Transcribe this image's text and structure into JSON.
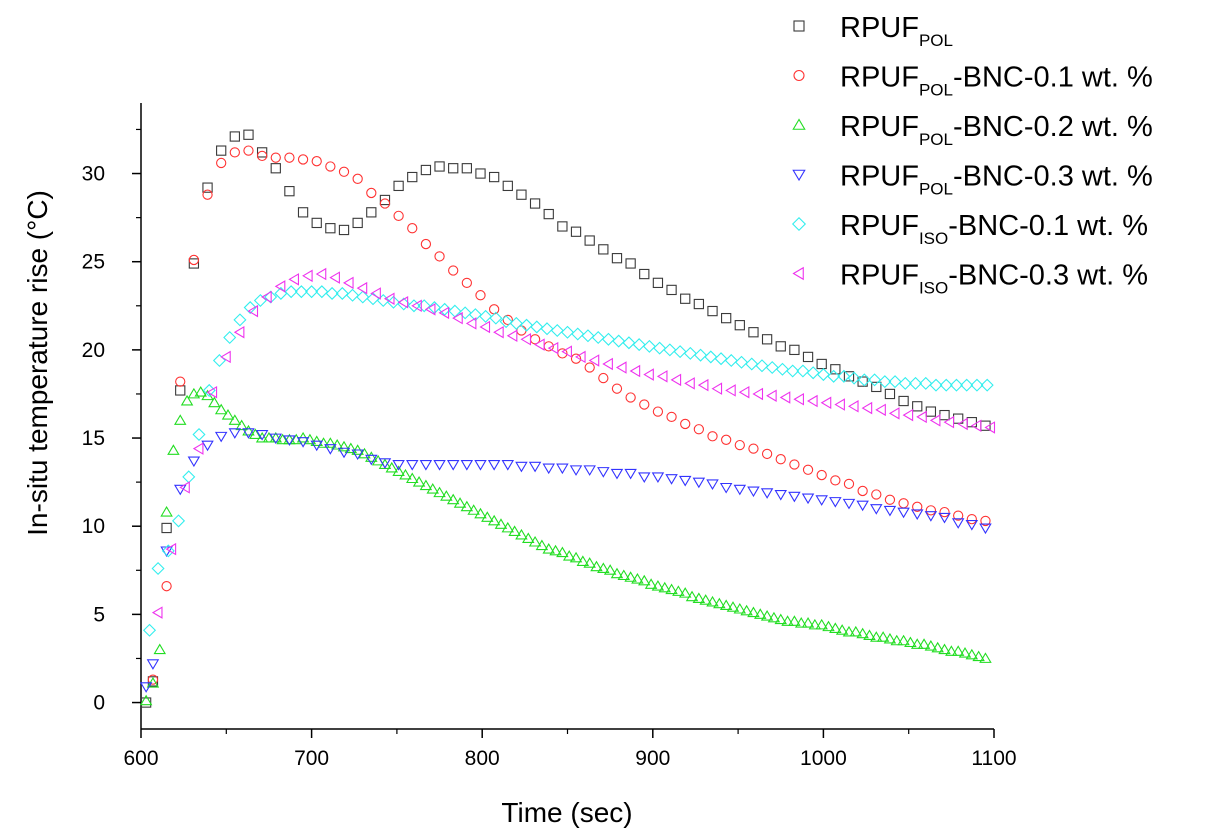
{
  "chart_data": {
    "type": "scatter",
    "xlabel": "Time (sec)",
    "ylabel": "In-situ temperature rise (°C)",
    "xlim": [
      600,
      1100
    ],
    "ylim": [
      -1.5,
      34
    ],
    "xticks": [
      600,
      700,
      800,
      900,
      1000,
      1100
    ],
    "yticks": [
      0,
      5,
      10,
      15,
      20,
      25,
      30
    ],
    "xtick_labels": [
      "600",
      "700",
      "800",
      "900",
      "1000",
      "1100"
    ],
    "ytick_labels": [
      "0",
      "5",
      "10",
      "15",
      "20",
      "25",
      "30"
    ],
    "grid": false,
    "legend_position": "top-right",
    "series": [
      {
        "name": "RPUF_POL",
        "legend": {
          "base": "RPUF",
          "sub": "POL",
          "tail": ""
        },
        "marker": "square",
        "color": "#3a3a3a",
        "x": [
          603,
          607,
          615,
          623,
          631,
          639,
          647,
          655,
          663,
          671,
          679,
          687,
          695,
          703,
          711,
          719,
          727,
          735,
          743,
          751,
          759,
          767,
          775,
          783,
          791,
          799,
          807,
          815,
          823,
          831,
          839,
          847,
          855,
          863,
          871,
          879,
          887,
          895,
          903,
          911,
          919,
          927,
          935,
          943,
          951,
          959,
          967,
          975,
          983,
          991,
          999,
          1007,
          1015,
          1023,
          1031,
          1039,
          1047,
          1055,
          1063,
          1071,
          1079,
          1087,
          1095
        ],
        "y": [
          0.0,
          1.2,
          9.9,
          17.7,
          24.9,
          29.2,
          31.3,
          32.1,
          32.2,
          31.2,
          30.3,
          29.0,
          27.8,
          27.2,
          26.9,
          26.8,
          27.2,
          27.8,
          28.5,
          29.3,
          29.8,
          30.2,
          30.4,
          30.3,
          30.3,
          30.0,
          29.8,
          29.3,
          28.8,
          28.3,
          27.7,
          27.0,
          26.7,
          26.2,
          25.7,
          25.2,
          24.9,
          24.3,
          23.8,
          23.4,
          22.9,
          22.6,
          22.2,
          21.8,
          21.4,
          21.0,
          20.6,
          20.2,
          20.0,
          19.6,
          19.2,
          18.9,
          18.5,
          18.2,
          17.9,
          17.5,
          17.1,
          16.8,
          16.5,
          16.3,
          16.1,
          15.9,
          15.7
        ]
      },
      {
        "name": "RPUF_POL-BNC-0.1 wt. %",
        "legend": {
          "base": "RPUF",
          "sub": "POL",
          "tail": "-BNC-0.1 wt. %"
        },
        "marker": "circle",
        "color": "#ff3333",
        "x": [
          607,
          615,
          623,
          631,
          639,
          647,
          655,
          663,
          671,
          679,
          687,
          695,
          703,
          711,
          719,
          727,
          735,
          743,
          751,
          759,
          767,
          775,
          783,
          791,
          799,
          807,
          815,
          823,
          831,
          839,
          847,
          855,
          863,
          871,
          879,
          887,
          895,
          903,
          911,
          919,
          927,
          935,
          943,
          951,
          959,
          967,
          975,
          983,
          991,
          999,
          1007,
          1015,
          1023,
          1031,
          1039,
          1047,
          1055,
          1063,
          1071,
          1079,
          1087,
          1095
        ],
        "y": [
          1.3,
          6.6,
          18.2,
          25.1,
          28.8,
          30.6,
          31.2,
          31.3,
          31.0,
          30.9,
          30.9,
          30.8,
          30.7,
          30.4,
          30.1,
          29.7,
          28.9,
          28.3,
          27.6,
          26.9,
          26.0,
          25.3,
          24.5,
          23.8,
          23.1,
          22.3,
          21.7,
          21.1,
          20.6,
          20.2,
          19.8,
          19.5,
          19.0,
          18.4,
          17.8,
          17.3,
          16.9,
          16.5,
          16.2,
          15.8,
          15.5,
          15.1,
          14.9,
          14.6,
          14.4,
          14.1,
          13.8,
          13.5,
          13.2,
          12.9,
          12.6,
          12.4,
          12.0,
          11.8,
          11.5,
          11.3,
          11.1,
          10.9,
          10.8,
          10.6,
          10.4,
          10.3
        ]
      },
      {
        "name": "RPUF_POL-BNC-0.2 wt. %",
        "legend": {
          "base": "RPUF",
          "sub": "POL",
          "tail": "-BNC-0.2 wt. %"
        },
        "marker": "triangle-up",
        "color": "#22dd22",
        "x": [
          603,
          607,
          611,
          615,
          619,
          623,
          627,
          631,
          635,
          639,
          643,
          647,
          651,
          655,
          659,
          663,
          667,
          671,
          675,
          679,
          683,
          687,
          691,
          695,
          699,
          703,
          707,
          711,
          715,
          719,
          723,
          727,
          731,
          735,
          739,
          743,
          747,
          751,
          755,
          759,
          763,
          767,
          771,
          775,
          779,
          783,
          787,
          791,
          795,
          799,
          803,
          807,
          811,
          815,
          819,
          823,
          827,
          831,
          835,
          839,
          843,
          847,
          851,
          855,
          859,
          863,
          867,
          871,
          875,
          879,
          883,
          887,
          891,
          895,
          899,
          903,
          907,
          911,
          915,
          919,
          923,
          927,
          931,
          935,
          939,
          943,
          947,
          951,
          955,
          959,
          963,
          967,
          971,
          975,
          979,
          983,
          987,
          991,
          995,
          999,
          1003,
          1007,
          1011,
          1015,
          1019,
          1023,
          1027,
          1031,
          1035,
          1039,
          1043,
          1047,
          1051,
          1055,
          1059,
          1063,
          1067,
          1071,
          1075,
          1079,
          1083,
          1087,
          1091,
          1095
        ],
        "y": [
          0.1,
          1.1,
          3.0,
          10.8,
          14.3,
          16.0,
          17.1,
          17.5,
          17.6,
          17.4,
          17.0,
          16.6,
          16.3,
          16.0,
          15.7,
          15.4,
          15.2,
          15.0,
          15.0,
          15.0,
          14.9,
          14.9,
          14.9,
          15.0,
          14.9,
          14.8,
          14.7,
          14.7,
          14.6,
          14.5,
          14.4,
          14.3,
          14.1,
          13.9,
          13.7,
          13.5,
          13.3,
          13.1,
          12.9,
          12.7,
          12.5,
          12.3,
          12.1,
          11.9,
          11.7,
          11.5,
          11.3,
          11.1,
          10.9,
          10.7,
          10.5,
          10.3,
          10.1,
          9.9,
          9.7,
          9.5,
          9.3,
          9.1,
          8.9,
          8.7,
          8.6,
          8.5,
          8.3,
          8.2,
          8.0,
          7.9,
          7.7,
          7.6,
          7.5,
          7.3,
          7.2,
          7.1,
          7.0,
          6.9,
          6.7,
          6.6,
          6.5,
          6.4,
          6.3,
          6.2,
          6.0,
          5.9,
          5.8,
          5.7,
          5.6,
          5.5,
          5.4,
          5.3,
          5.2,
          5.1,
          5.0,
          4.9,
          4.8,
          4.7,
          4.6,
          4.6,
          4.5,
          4.5,
          4.4,
          4.4,
          4.3,
          4.2,
          4.1,
          4.0,
          4.0,
          3.9,
          3.8,
          3.7,
          3.7,
          3.6,
          3.5,
          3.5,
          3.4,
          3.3,
          3.3,
          3.2,
          3.1,
          3.0,
          2.9,
          2.9,
          2.8,
          2.7,
          2.6,
          2.5
        ]
      },
      {
        "name": "RPUF_POL-BNC-0.3 wt. %",
        "legend": {
          "base": "RPUF",
          "sub": "POL",
          "tail": "-BNC-0.3 wt. %"
        },
        "marker": "triangle-down",
        "color": "#3333ff",
        "x": [
          603,
          607,
          615,
          623,
          631,
          639,
          647,
          655,
          663,
          671,
          679,
          687,
          695,
          703,
          711,
          719,
          727,
          735,
          743,
          751,
          759,
          767,
          775,
          783,
          791,
          799,
          807,
          815,
          823,
          831,
          839,
          847,
          855,
          863,
          871,
          879,
          887,
          895,
          903,
          911,
          919,
          927,
          935,
          943,
          951,
          959,
          967,
          975,
          983,
          991,
          999,
          1007,
          1015,
          1023,
          1031,
          1039,
          1047,
          1055,
          1063,
          1071,
          1079,
          1087,
          1095
        ],
        "y": [
          0.9,
          2.2,
          8.6,
          12.1,
          13.7,
          14.6,
          15.1,
          15.3,
          15.3,
          15.2,
          15.0,
          14.9,
          14.8,
          14.6,
          14.4,
          14.2,
          14.1,
          13.8,
          13.6,
          13.5,
          13.5,
          13.5,
          13.5,
          13.5,
          13.5,
          13.5,
          13.5,
          13.5,
          13.4,
          13.4,
          13.3,
          13.3,
          13.2,
          13.2,
          13.1,
          13.0,
          13.0,
          12.8,
          12.8,
          12.7,
          12.6,
          12.5,
          12.4,
          12.2,
          12.1,
          12.0,
          11.9,
          11.8,
          11.7,
          11.6,
          11.5,
          11.4,
          11.3,
          11.2,
          11.0,
          10.9,
          10.8,
          10.7,
          10.6,
          10.5,
          10.2,
          10.1,
          9.9
        ]
      },
      {
        "name": "RPUF_ISO-BNC-0.1 wt. %",
        "legend": {
          "base": "RPUF",
          "sub": "ISO",
          "tail": "-BNC-0.1 wt. %"
        },
        "marker": "diamond",
        "color": "#33eeee",
        "x": [
          605,
          610,
          616,
          622,
          628,
          634,
          640,
          646,
          652,
          658,
          664,
          670,
          676,
          682,
          688,
          694,
          700,
          706,
          712,
          718,
          724,
          730,
          736,
          742,
          748,
          754,
          760,
          766,
          772,
          778,
          784,
          790,
          796,
          802,
          808,
          814,
          820,
          826,
          832,
          838,
          844,
          850,
          856,
          862,
          868,
          874,
          880,
          886,
          892,
          898,
          904,
          910,
          916,
          922,
          928,
          934,
          940,
          946,
          952,
          958,
          964,
          970,
          976,
          982,
          988,
          994,
          1000,
          1006,
          1012,
          1018,
          1024,
          1030,
          1036,
          1042,
          1048,
          1054,
          1060,
          1066,
          1072,
          1078,
          1084,
          1090,
          1096
        ],
        "y": [
          4.1,
          7.6,
          8.6,
          10.3,
          12.8,
          15.2,
          17.7,
          19.4,
          20.7,
          21.7,
          22.4,
          22.8,
          23.0,
          23.2,
          23.3,
          23.3,
          23.3,
          23.3,
          23.2,
          23.2,
          23.1,
          23.0,
          22.9,
          22.8,
          22.7,
          22.6,
          22.5,
          22.5,
          22.4,
          22.3,
          22.2,
          22.1,
          22.0,
          21.9,
          21.8,
          21.6,
          21.5,
          21.4,
          21.3,
          21.2,
          21.1,
          21.0,
          20.9,
          20.8,
          20.7,
          20.6,
          20.5,
          20.4,
          20.3,
          20.2,
          20.1,
          20.0,
          19.9,
          19.8,
          19.7,
          19.6,
          19.5,
          19.4,
          19.3,
          19.2,
          19.1,
          19.0,
          18.9,
          18.8,
          18.8,
          18.7,
          18.6,
          18.5,
          18.5,
          18.4,
          18.3,
          18.3,
          18.2,
          18.2,
          18.1,
          18.1,
          18.1,
          18.0,
          18.0,
          18.0,
          18.0,
          18.0,
          18.0
        ]
      },
      {
        "name": "RPUF_ISO-BNC-0.3 wt. %",
        "legend": {
          "base": "RPUF",
          "sub": "ISO",
          "tail": "-BNC-0.3 wt. %"
        },
        "marker": "triangle-left",
        "color": "#ee33ee",
        "x": [
          610,
          618,
          626,
          634,
          642,
          650,
          658,
          666,
          674,
          682,
          690,
          698,
          706,
          714,
          722,
          730,
          738,
          746,
          754,
          762,
          770,
          778,
          786,
          794,
          802,
          810,
          818,
          826,
          834,
          842,
          850,
          858,
          866,
          874,
          882,
          890,
          898,
          906,
          914,
          922,
          930,
          938,
          946,
          954,
          962,
          970,
          978,
          986,
          994,
          1002,
          1010,
          1018,
          1026,
          1034,
          1042,
          1050,
          1058,
          1066,
          1074,
          1082,
          1090,
          1098
        ],
        "y": [
          5.1,
          8.7,
          12.2,
          14.4,
          17.6,
          19.6,
          21.0,
          22.2,
          23.0,
          23.6,
          24.0,
          24.2,
          24.3,
          24.1,
          23.8,
          23.5,
          23.2,
          22.9,
          22.7,
          22.5,
          22.3,
          22.1,
          21.8,
          21.5,
          21.3,
          21.0,
          20.8,
          20.6,
          20.3,
          20.1,
          19.9,
          19.6,
          19.4,
          19.2,
          19.0,
          18.8,
          18.6,
          18.5,
          18.3,
          18.1,
          18.0,
          17.8,
          17.7,
          17.6,
          17.5,
          17.4,
          17.3,
          17.2,
          17.1,
          17.0,
          16.9,
          16.8,
          16.7,
          16.6,
          16.4,
          16.3,
          16.2,
          16.0,
          15.9,
          15.8,
          15.7,
          15.6
        ]
      }
    ]
  }
}
